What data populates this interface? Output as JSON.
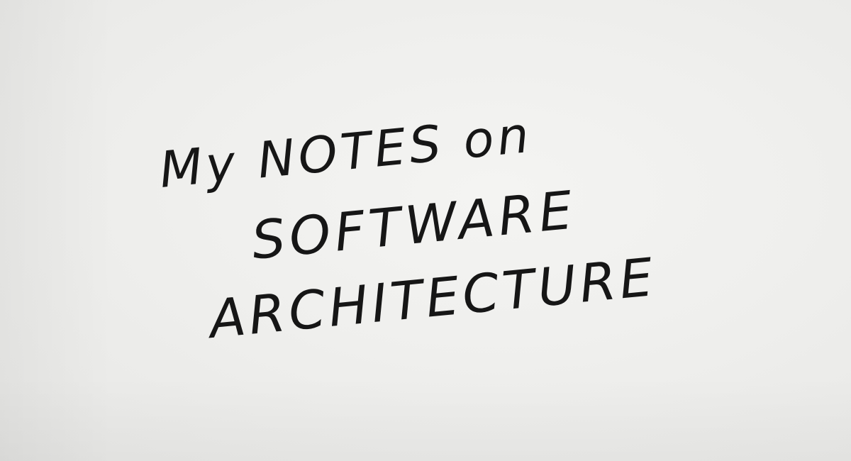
{
  "note": {
    "line_1": "My NOTES on",
    "line_2": "SOFTWARE",
    "line_3": "ARCHITECTURE"
  },
  "colors": {
    "paper": "#eeeeec",
    "ink": "#161616"
  }
}
